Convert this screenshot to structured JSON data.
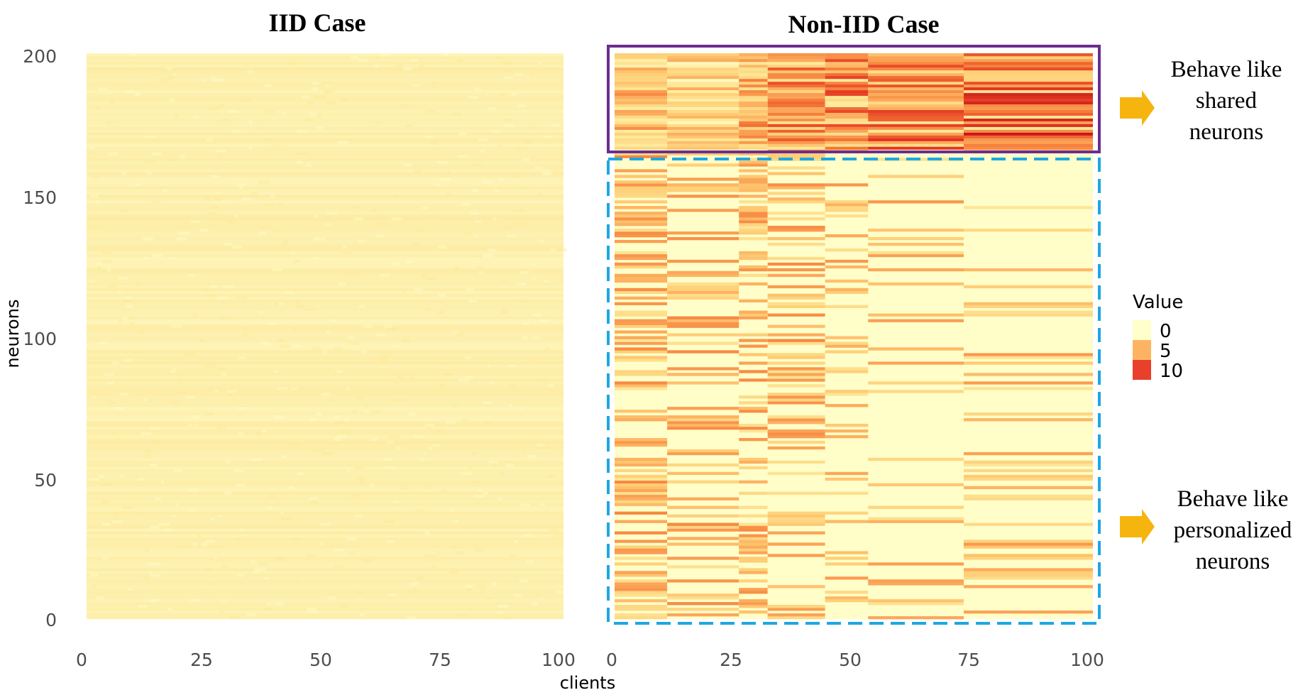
{
  "chart_data": {
    "type": "heatmap",
    "xlabel": "clients",
    "ylabel": "neurons",
    "x_ticks": [
      0,
      25,
      50,
      75,
      100
    ],
    "y_ticks": [
      0,
      50,
      100,
      150,
      200
    ],
    "xlim": [
      0,
      100
    ],
    "ylim": [
      0,
      200
    ],
    "panels": [
      {
        "title": "IID Case",
        "value_description": "nearly uniform low values (~1-2) for all neurons and clients"
      },
      {
        "title": "Non-IID Case",
        "regions": [
          {
            "neurons": [
              165,
              200
            ],
            "annotation": "Behave like shared neurons",
            "value_range": [
              2,
              11
            ]
          },
          {
            "neurons": [
              0,
              165
            ],
            "annotation": "Behave like personalized neurons",
            "value_range": [
              0,
              6
            ]
          }
        ],
        "client_blocks": [
          [
            0,
            11
          ],
          [
            11,
            26
          ],
          [
            26,
            32
          ],
          [
            32,
            44
          ],
          [
            44,
            53
          ],
          [
            53,
            73
          ],
          [
            73,
            100
          ]
        ]
      }
    ],
    "legend": {
      "title": "Value",
      "entries": [
        {
          "label": "0",
          "color": "#ffffcc"
        },
        {
          "label": "5",
          "color": "#fdb462"
        },
        {
          "label": "10",
          "color": "#e8402a"
        }
      ]
    }
  },
  "annotations": {
    "shared": [
      "Behave like",
      "shared",
      "neurons"
    ],
    "personalized": [
      "Behave like",
      "personalized",
      "neurons"
    ]
  },
  "colors": {
    "shared_box": "#6b2d8f",
    "personalized_box": "#1ea7e1",
    "arrow": "#f6b40e"
  }
}
